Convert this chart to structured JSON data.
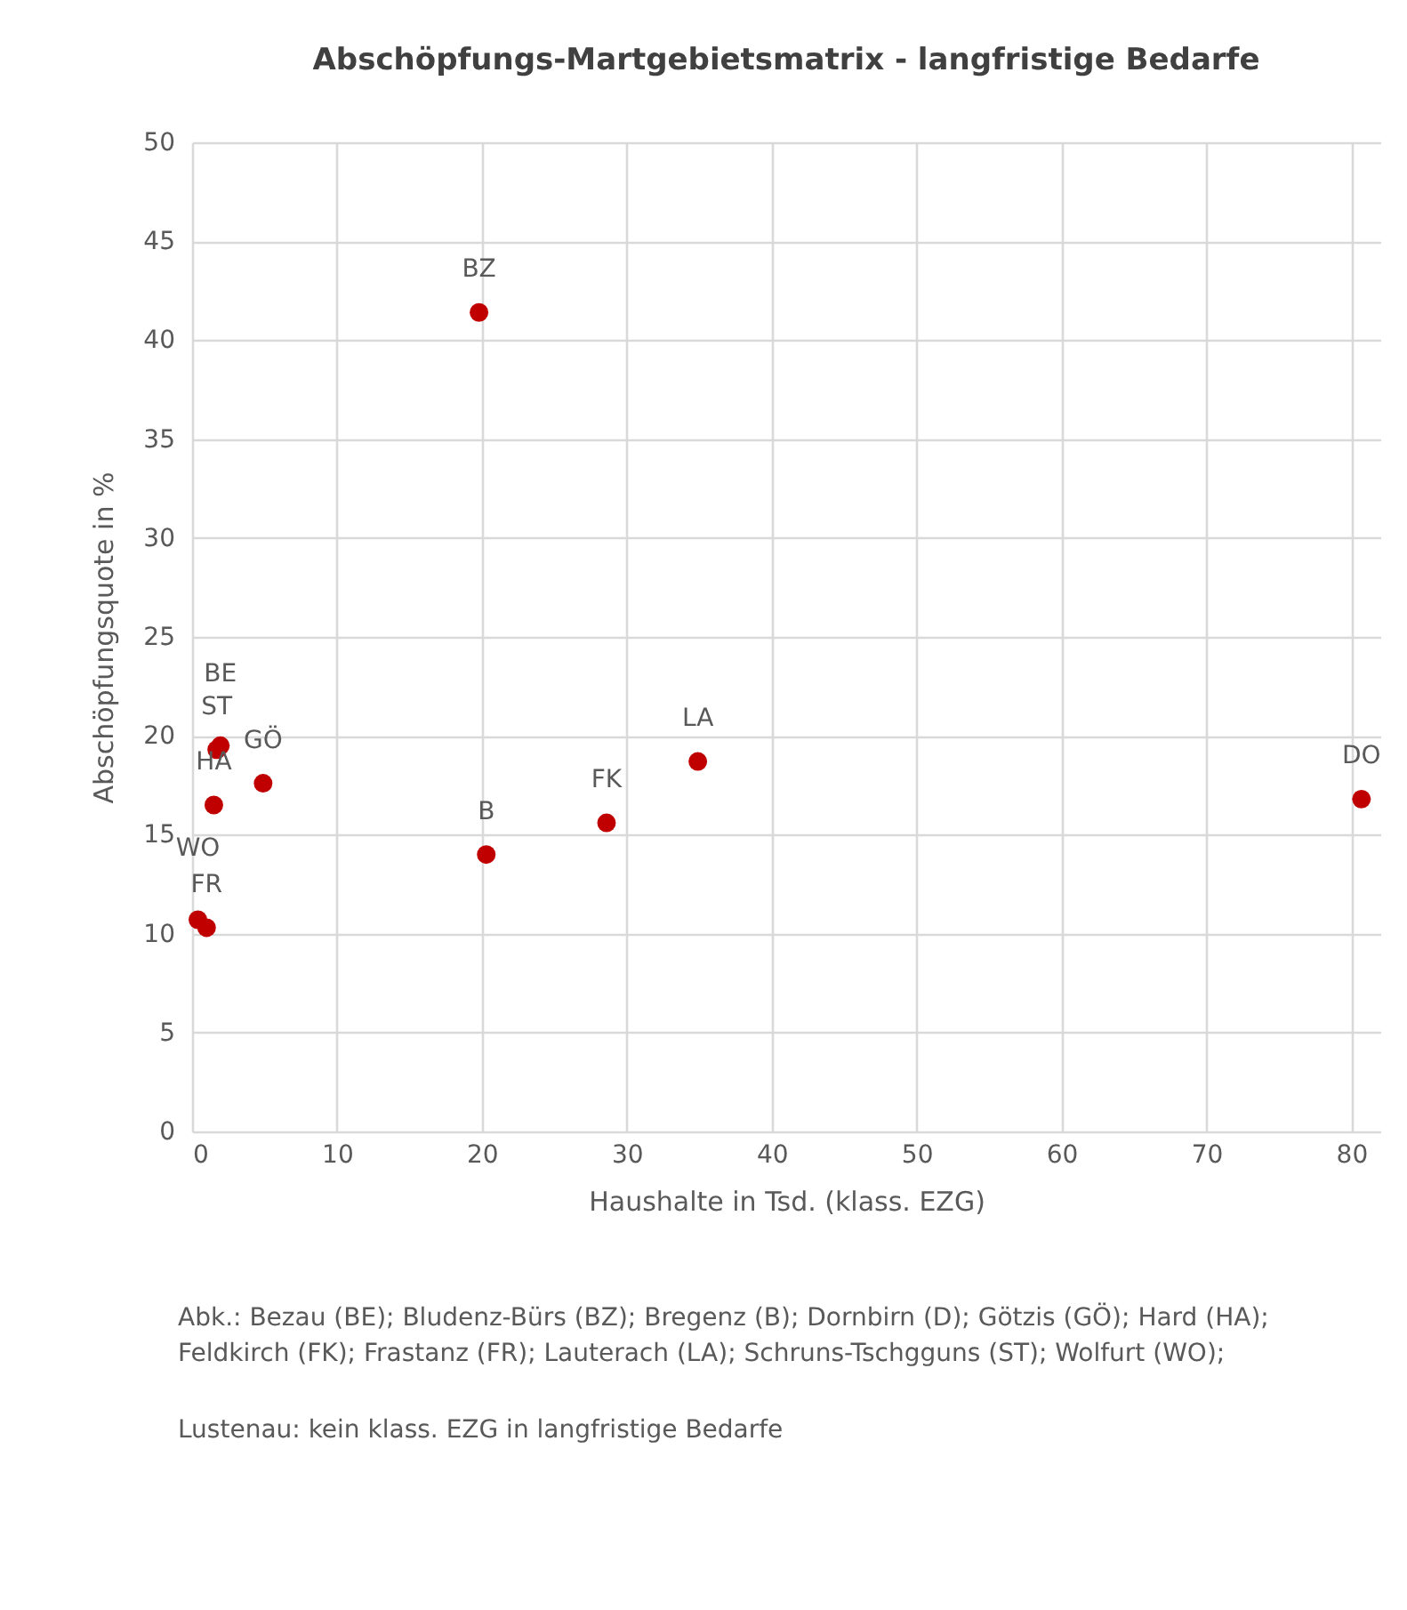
{
  "chart_data": {
    "type": "scatter",
    "title": "Abschöpfungs-Martgebietsmatrix - langfristige Bedarfe",
    "xlabel": "Haushalte in Tsd. (klass. EZG)",
    "ylabel": "Abschöpfungsquote in %",
    "x": [
      19.8,
      20.3,
      28.6,
      34.9,
      80.7,
      1.95,
      1.7,
      4.9,
      1.5,
      0.4,
      1.0
    ],
    "series": [
      {
        "color": "#c00000",
        "values": [
          41.4,
          14.0,
          15.6,
          18.7,
          16.8,
          19.5,
          19.3,
          17.6,
          16.5,
          10.7,
          10.3
        ]
      }
    ],
    "xlim": [
      0,
      82
    ],
    "xticks": [
      0,
      10,
      20,
      30,
      40,
      50,
      60,
      70,
      80
    ],
    "ylim": [
      0,
      50
    ],
    "yticks": [
      0,
      5,
      10,
      15,
      20,
      25,
      30,
      35,
      40,
      45,
      50
    ],
    "grid": true,
    "marker": "circle",
    "annotations": [
      {
        "text": "BZ",
        "x": 19.8,
        "y": 41.4
      },
      {
        "text": "B",
        "x": 20.3,
        "y": 14.0
      },
      {
        "text": "FK",
        "x": 28.6,
        "y": 15.6
      },
      {
        "text": "LA",
        "x": 34.9,
        "y": 18.7
      },
      {
        "text": "DO",
        "x": 80.7,
        "y": 16.8
      },
      {
        "text": "BE",
        "x": 1.95,
        "y": 19.5
      },
      {
        "text": "ST",
        "x": 1.7,
        "y": 19.3
      },
      {
        "text": "GÖ",
        "x": 4.9,
        "y": 17.6
      },
      {
        "text": "HA",
        "x": 1.5,
        "y": 16.5
      },
      {
        "text": "WO",
        "x": 0.4,
        "y": 10.7
      },
      {
        "text": "FR",
        "x": 1.0,
        "y": 10.3
      },
      "Abk.: Bezau (BE); Bludenz-Bürs (BZ); Bregenz (B); Dornbirn (D); Götzis (GÖ); Hard (HA); Feldkirch (FK); Frastanz (FR); Lauterach (LA); Schruns-Tschgguns (ST); Wolfurt (WO);",
      "Lustenau: kein klass. EZG in langfristige Bedarfe"
    ]
  }
}
